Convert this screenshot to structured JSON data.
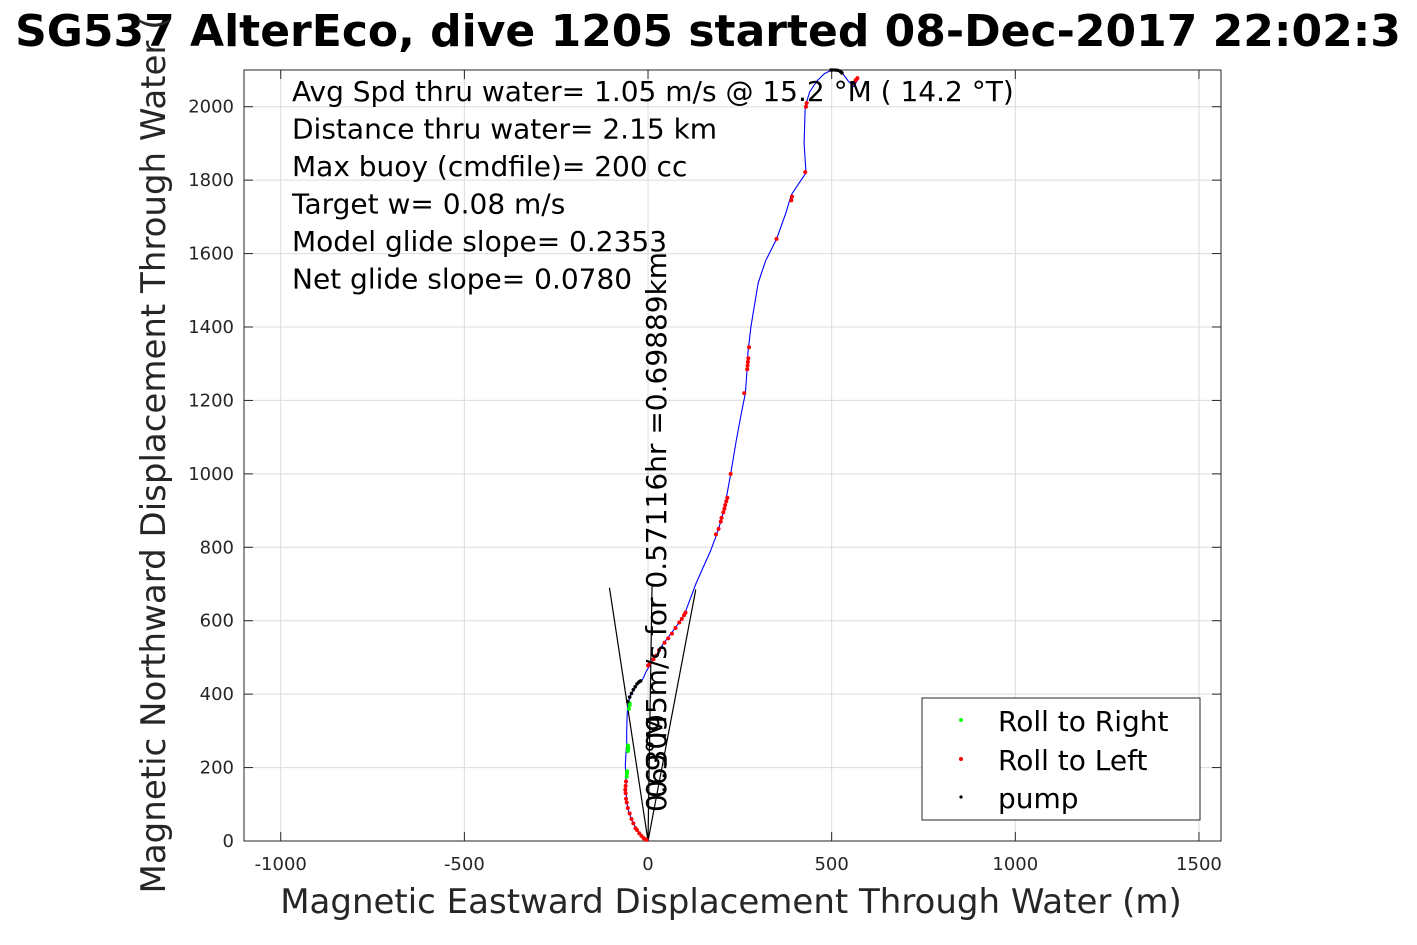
{
  "chart_data": {
    "type": "line",
    "title": "SG537 AlterEco, dive 1205 started 08-Dec-2017 22:02:3",
    "xlabel": "Magnetic Eastward Displacement Through Water (m)",
    "ylabel": "Magnetic Northward Displacement Through Water (",
    "xlim": [
      -1100,
      1560
    ],
    "ylim": [
      0,
      2100
    ],
    "xticks": [
      -1000,
      -500,
      0,
      500,
      1000,
      1500
    ],
    "yticks": [
      0,
      200,
      400,
      600,
      800,
      1000,
      1200,
      1400,
      1600,
      1800,
      2000
    ],
    "xtick_labels": [
      "-1000",
      "-500",
      "0",
      "500",
      "1000",
      "1500"
    ],
    "ytick_labels": [
      "0",
      "200",
      "400",
      "600",
      "800",
      "1000",
      "1200",
      "1400",
      "1600",
      "1800",
      "2000"
    ],
    "grid": true,
    "info_lines": [
      "Avg Spd thru water=  1.05 m/s @  15.2 °M ( 14.2 °T)",
      "Distance thru water=  2.15 km",
      "Max buoy (cmdfile)= 200 cc",
      "Target w= 0.08 m/s",
      "Model glide slope= 0.2353",
      "Net glide slope= 0.0780"
    ],
    "current_labels": [
      "0.63095m/s for 0.57116hr =0.69889km",
      "0.9°M"
    ],
    "legend": {
      "position": "bottom-right",
      "entries": [
        {
          "name": "Roll to Right",
          "color": "#00ff00"
        },
        {
          "name": "Roll to Left",
          "color": "#ff0000"
        },
        {
          "name": "pump",
          "color": "#000000"
        }
      ]
    },
    "track_color": "#0000ff",
    "track": [
      [
        0,
        0
      ],
      [
        -8,
        5
      ],
      [
        -18,
        14
      ],
      [
        -30,
        30
      ],
      [
        -42,
        52
      ],
      [
        -52,
        78
      ],
      [
        -58,
        105
      ],
      [
        -60,
        140
      ],
      [
        -60,
        175
      ],
      [
        -62,
        205
      ],
      [
        -60,
        240
      ],
      [
        -58,
        265
      ],
      [
        -58,
        300
      ],
      [
        -57,
        340
      ],
      [
        -55,
        370
      ],
      [
        -48,
        395
      ],
      [
        -38,
        415
      ],
      [
        -28,
        430
      ],
      [
        -20,
        437
      ],
      [
        -15,
        440
      ],
      [
        -10,
        450
      ],
      [
        -5,
        462
      ],
      [
        0,
        470
      ],
      [
        5,
        478
      ],
      [
        12,
        490
      ],
      [
        25,
        510
      ],
      [
        40,
        535
      ],
      [
        55,
        555
      ],
      [
        70,
        575
      ],
      [
        85,
        595
      ],
      [
        100,
        620
      ],
      [
        115,
        660
      ],
      [
        130,
        700
      ],
      [
        150,
        745
      ],
      [
        170,
        790
      ],
      [
        185,
        830
      ],
      [
        195,
        860
      ],
      [
        205,
        895
      ],
      [
        210,
        920
      ],
      [
        215,
        945
      ],
      [
        225,
        1000
      ],
      [
        240,
        1090
      ],
      [
        255,
        1170
      ],
      [
        265,
        1220
      ],
      [
        270,
        1290
      ],
      [
        272,
        1330
      ],
      [
        280,
        1400
      ],
      [
        290,
        1460
      ],
      [
        300,
        1520
      ],
      [
        320,
        1580
      ],
      [
        350,
        1640
      ],
      [
        375,
        1710
      ],
      [
        390,
        1760
      ],
      [
        410,
        1790
      ],
      [
        430,
        1820
      ],
      [
        425,
        1900
      ],
      [
        428,
        2000
      ],
      [
        440,
        2040
      ],
      [
        460,
        2070
      ],
      [
        480,
        2090
      ],
      [
        500,
        2100
      ],
      [
        515,
        2100
      ],
      [
        530,
        2090
      ],
      [
        545,
        2070
      ],
      [
        560,
        2055
      ],
      [
        572,
        2075
      ]
    ],
    "right_roll_points": [
      [
        -58,
        175
      ],
      [
        -57,
        185
      ],
      [
        -57,
        190
      ],
      [
        -55,
        245
      ],
      [
        -54,
        250
      ],
      [
        -54,
        255
      ],
      [
        -55,
        260
      ],
      [
        -52,
        360
      ],
      [
        -50,
        370
      ],
      [
        -50,
        375
      ]
    ],
    "left_roll_points": [
      [
        -4,
        3
      ],
      [
        -8,
        5
      ],
      [
        -12,
        8
      ],
      [
        -18,
        14
      ],
      [
        -24,
        21
      ],
      [
        -30,
        30
      ],
      [
        -34,
        35
      ],
      [
        -40,
        48
      ],
      [
        -45,
        60
      ],
      [
        -50,
        75
      ],
      [
        -55,
        90
      ],
      [
        -58,
        105
      ],
      [
        -60,
        115
      ],
      [
        -61,
        130
      ],
      [
        -62,
        140
      ],
      [
        -61,
        150
      ],
      [
        -60,
        162
      ],
      [
        0,
        478
      ],
      [
        5,
        485
      ],
      [
        15,
        495
      ],
      [
        22,
        505
      ],
      [
        30,
        520
      ],
      [
        45,
        540
      ],
      [
        55,
        552
      ],
      [
        65,
        565
      ],
      [
        75,
        580
      ],
      [
        85,
        595
      ],
      [
        92,
        605
      ],
      [
        98,
        615
      ],
      [
        102,
        622
      ],
      [
        185,
        835
      ],
      [
        192,
        850
      ],
      [
        198,
        870
      ],
      [
        200,
        880
      ],
      [
        205,
        895
      ],
      [
        208,
        905
      ],
      [
        210,
        915
      ],
      [
        213,
        925
      ],
      [
        216,
        935
      ],
      [
        225,
        1000
      ],
      [
        262,
        1220
      ],
      [
        270,
        1285
      ],
      [
        271,
        1295
      ],
      [
        272,
        1305
      ],
      [
        273,
        1315
      ],
      [
        275,
        1345
      ],
      [
        350,
        1640
      ],
      [
        390,
        1745
      ],
      [
        392,
        1755
      ],
      [
        428,
        1822
      ],
      [
        430,
        2000
      ],
      [
        432,
        2010
      ],
      [
        560,
        2065
      ],
      [
        565,
        2072
      ],
      [
        570,
        2078
      ]
    ],
    "pump_points": [
      [
        -55,
        380
      ],
      [
        -50,
        392
      ],
      [
        -45,
        402
      ],
      [
        -40,
        412
      ],
      [
        -35,
        420
      ],
      [
        -30,
        428
      ],
      [
        -25,
        433
      ],
      [
        -20,
        436
      ],
      [
        498,
        2100
      ],
      [
        502,
        2100
      ],
      [
        510,
        2100
      ],
      [
        517,
        2099
      ],
      [
        524,
        2096
      ],
      [
        528,
        2092
      ]
    ],
    "current_lines": [
      [
        [
          0,
          0
        ],
        [
          -105,
          690
        ]
      ],
      [
        [
          0,
          0
        ],
        [
          130,
          685
        ]
      ]
    ],
    "current_vertical": [
      [
        0,
        0
      ],
      [
        11,
        700
      ]
    ]
  }
}
